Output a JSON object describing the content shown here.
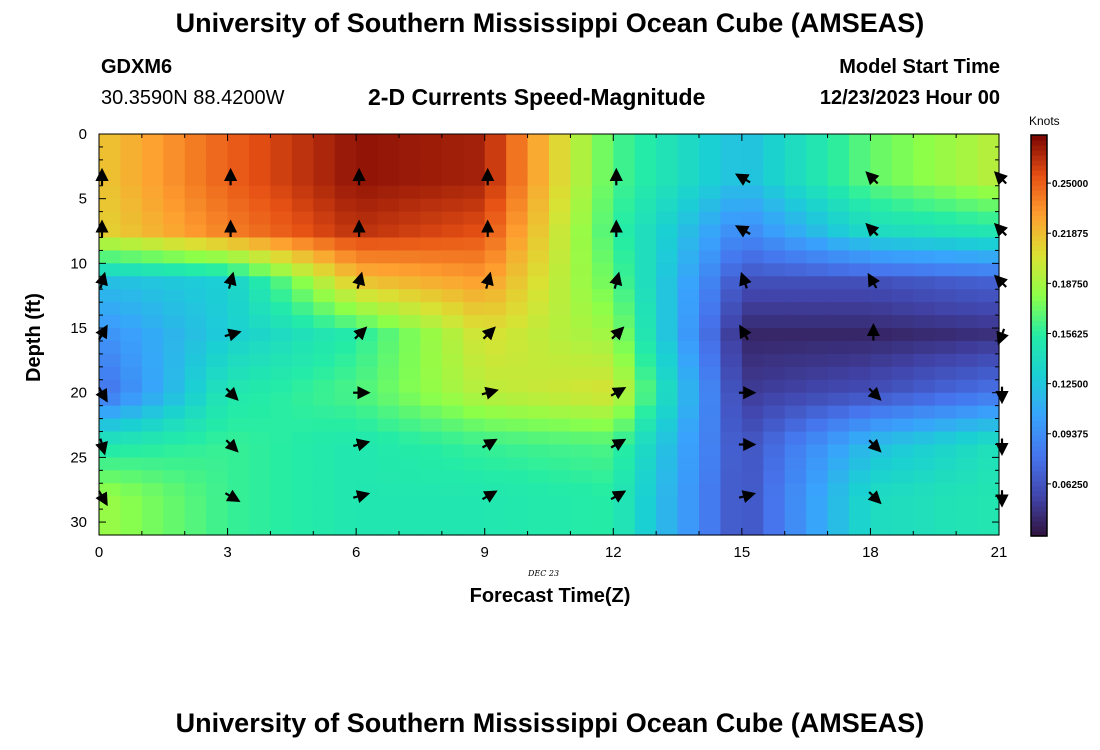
{
  "header": {
    "title": "University of Southern Mississippi Ocean Cube (AMSEAS)",
    "station": "GDXM6",
    "coords": "30.3590N  88.4200W",
    "subtitle": "2-D Currents Speed-Magnitude",
    "model_start_label": "Model Start Time",
    "model_start_value": "12/23/2023 Hour 00",
    "footer_title": "University of Southern Mississippi Ocean Cube (AMSEAS)"
  },
  "chart_data": {
    "type": "heatmap",
    "title": "2-D Currents Speed-Magnitude",
    "xlabel": "Forecast Time(Z)",
    "ylabel": "Depth (ft)",
    "date_label": "DEC 23",
    "xlim": [
      0,
      21
    ],
    "ylim": [
      0,
      31
    ],
    "x_ticks": [
      "0",
      "3",
      "6",
      "9",
      "12",
      "15",
      "18",
      "21"
    ],
    "y_ticks": [
      "0",
      "5",
      "10",
      "15",
      "20",
      "25",
      "30"
    ],
    "colorbar": {
      "unit": "Knots",
      "min": 0.03,
      "max": 0.28,
      "ticks": [
        "0.25000",
        "0.21875",
        "0.18750",
        "0.15625",
        "0.12500",
        "0.09375",
        "0.06250"
      ],
      "tick_values": [
        0.25,
        0.21875,
        0.1875,
        0.15625,
        0.125,
        0.09375,
        0.0625
      ]
    },
    "times": [
      0,
      3,
      6,
      9,
      12,
      15,
      18,
      21
    ],
    "depth_levels": [
      3.5,
      7.5,
      11.5,
      15.5,
      20.0,
      24.0,
      28.0
    ],
    "speed_grid": [
      [
        0.215,
        0.25,
        0.275,
        0.27,
        0.165,
        0.12,
        0.17,
        0.195
      ],
      [
        0.21,
        0.24,
        0.265,
        0.255,
        0.16,
        0.09,
        0.14,
        0.15
      ],
      [
        0.12,
        0.13,
        0.215,
        0.23,
        0.17,
        0.06,
        0.06,
        0.07
      ],
      [
        0.095,
        0.13,
        0.155,
        0.205,
        0.185,
        0.04,
        0.04,
        0.045
      ],
      [
        0.075,
        0.15,
        0.165,
        0.195,
        0.205,
        0.05,
        0.06,
        0.08
      ],
      [
        0.15,
        0.16,
        0.15,
        0.16,
        0.165,
        0.06,
        0.12,
        0.145
      ],
      [
        0.185,
        0.16,
        0.15,
        0.15,
        0.155,
        0.06,
        0.14,
        0.15
      ]
    ],
    "vector_directions_deg": [
      [
        0,
        0,
        0,
        0,
        0,
        300,
        315,
        315
      ],
      [
        0,
        0,
        0,
        0,
        0,
        300,
        315,
        315
      ],
      [
        15,
        15,
        15,
        15,
        15,
        340,
        330,
        315
      ],
      [
        30,
        75,
        45,
        45,
        45,
        330,
        0,
        200
      ],
      [
        150,
        135,
        90,
        75,
        60,
        90,
        135,
        180
      ],
      [
        165,
        135,
        75,
        60,
        60,
        90,
        135,
        180
      ],
      [
        150,
        120,
        75,
        60,
        60,
        75,
        135,
        180
      ]
    ]
  }
}
